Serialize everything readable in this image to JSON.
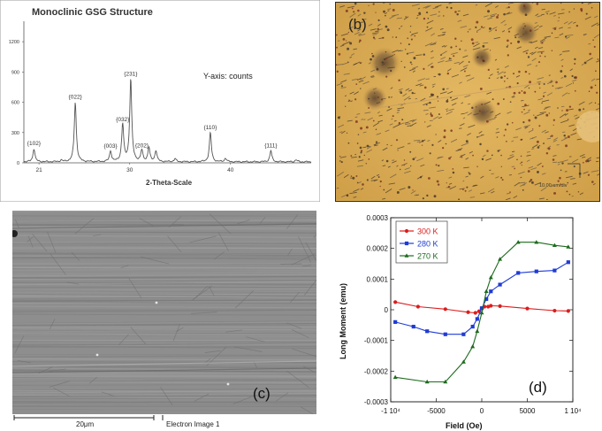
{
  "panel_b": {
    "label": "(b)",
    "scale_label": "10.00 um/div"
  },
  "panel_c": {
    "label": "(c)",
    "scale_label": "20μm",
    "caption": "Electron Image 1"
  },
  "panel_d": {
    "label": "(d)"
  },
  "chart_data": [
    {
      "type": "line",
      "title": "Monoclinic GSG Structure",
      "annotation": "Y-axis: counts",
      "xlabel": "2-Theta-Scale",
      "ylabel": "",
      "xlim": [
        19.5,
        48
      ],
      "ylim": [
        0,
        1350
      ],
      "xticks": [
        21,
        30,
        40
      ],
      "yticks": [
        0,
        300,
        600,
        900,
        1200
      ],
      "color": "#555555",
      "peaks": [
        {
          "x": 20.5,
          "y": 130,
          "label": "{102}"
        },
        {
          "x": 23.2,
          "y": 15,
          "label": ""
        },
        {
          "x": 24.6,
          "y": 590,
          "label": "{022}"
        },
        {
          "x": 28.1,
          "y": 105,
          "label": "{003}"
        },
        {
          "x": 29.3,
          "y": 370,
          "label": "{032}"
        },
        {
          "x": 30.1,
          "y": 820,
          "label": "{231}"
        },
        {
          "x": 31.2,
          "y": 110,
          "label": "{202}"
        },
        {
          "x": 31.9,
          "y": 140,
          "label": ""
        },
        {
          "x": 32.6,
          "y": 110,
          "label": ""
        },
        {
          "x": 34.5,
          "y": 30,
          "label": ""
        },
        {
          "x": 38.0,
          "y": 290,
          "label": "{110}"
        },
        {
          "x": 39.5,
          "y": 35,
          "label": ""
        },
        {
          "x": 44.0,
          "y": 110,
          "label": "{111}"
        },
        {
          "x": 46.5,
          "y": 20,
          "label": ""
        }
      ]
    },
    {
      "type": "line",
      "title": "",
      "xlabel": "Field (Oe)",
      "ylabel": "Long Moment (emu)",
      "xlim": [
        -10000,
        10000
      ],
      "ylim": [
        -0.0003,
        0.0003
      ],
      "xticks": [
        "-1 10⁴",
        "-5000",
        "0",
        "5000",
        "1 10⁴"
      ],
      "yticks": [
        "-0.0003",
        "-0.0002",
        "-0.0001",
        "0",
        "0.0001",
        "0.0002",
        "0.0003"
      ],
      "legend_position": "top-left",
      "series": [
        {
          "name": "300 K",
          "color": "#dd1c1c",
          "marker": "circle",
          "x": [
            -9500,
            -7000,
            -4000,
            -1500,
            -700,
            -300,
            0,
            300,
            700,
            1000,
            2000,
            5000,
            8000,
            9500
          ],
          "y": [
            2.5e-05,
            1e-05,
            2e-06,
            -8e-06,
            -1e-05,
            -5e-06,
            5e-06,
            1e-05,
            1e-05,
            1.3e-05,
            1.2e-05,
            4e-06,
            -3e-06,
            -4e-06
          ]
        },
        {
          "name": "280 K",
          "color": "#1f3bd6",
          "marker": "square",
          "x": [
            -9500,
            -7500,
            -6000,
            -4000,
            -2000,
            -1000,
            -500,
            0,
            500,
            1000,
            2000,
            4000,
            6000,
            8000,
            9500
          ],
          "y": [
            -4e-05,
            -5.5e-05,
            -7e-05,
            -8e-05,
            -8e-05,
            -5.5e-05,
            -3e-05,
            5e-06,
            3.5e-05,
            6e-05,
            8.2e-05,
            0.00012,
            0.000125,
            0.000128,
            0.000155
          ]
        },
        {
          "name": "270 K",
          "color": "#1d6b1d",
          "marker": "triangle",
          "x": [
            -9500,
            -6000,
            -4000,
            -2000,
            -1000,
            -500,
            0,
            500,
            1000,
            2000,
            4000,
            6000,
            8000,
            9500
          ],
          "y": [
            -0.00022,
            -0.000235,
            -0.000235,
            -0.00017,
            -0.00012,
            -7e-05,
            -1e-05,
            6e-05,
            0.000105,
            0.000165,
            0.00022,
            0.00022,
            0.00021,
            0.000205
          ]
        }
      ]
    }
  ]
}
